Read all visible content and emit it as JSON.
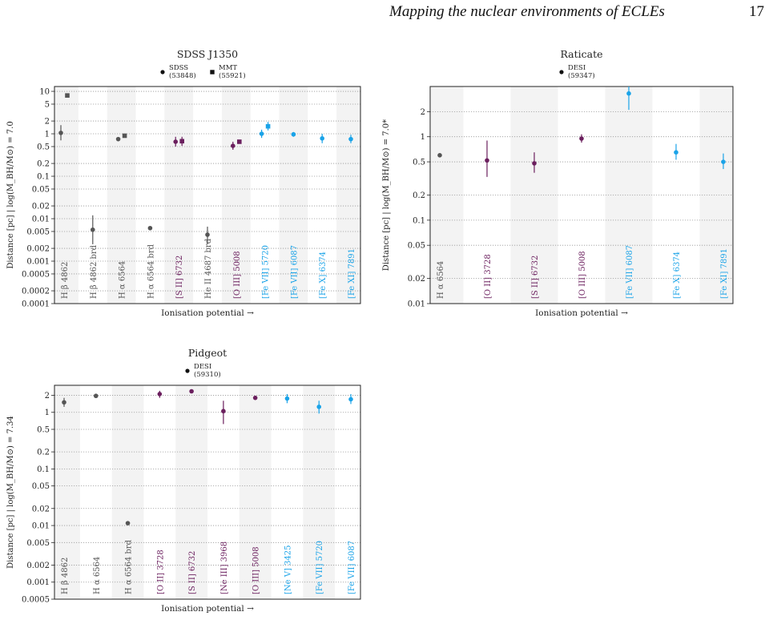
{
  "header": {
    "running_title": "Mapping the nuclear environments of ECLEs",
    "page_number": "17"
  },
  "colors": {
    "balmer": "#555555",
    "low_ionisation": "#6b1f5e",
    "coronal": "#1aa3e8",
    "band": "#f3f3f3",
    "gridline": "#9a9a9a"
  },
  "chart_data": [
    {
      "id": "sdss-j1350",
      "type": "scatter",
      "title": "SDSS J1350",
      "xlabel": "Ionisation potential →",
      "ylabel": "Distance [pc] | log(M_BH/M⊙) = 7.0",
      "y_scale": "log",
      "ylim": [
        0.0001,
        13
      ],
      "grid": "horizontal-dotted",
      "legend": [
        {
          "marker": "circle",
          "line1": "SDSS",
          "line2": "(53848)"
        },
        {
          "marker": "square",
          "line1": "MMT",
          "line2": "(55921)"
        }
      ],
      "y_ticks": [
        "10",
        "5",
        "2",
        "1",
        "0.5",
        "0.2",
        "0.1",
        "0.05",
        "0.02",
        "0.01",
        "0.005",
        "0.002",
        "0.001",
        "0.0005",
        "0.0002",
        "0.0001"
      ],
      "categories": [
        {
          "label": "H β 4862",
          "group": "balmer"
        },
        {
          "label": "H β 4862 brd",
          "group": "balmer"
        },
        {
          "label": "H α 6564",
          "group": "balmer"
        },
        {
          "label": "H α 6564 brd",
          "group": "balmer"
        },
        {
          "label": "[S II] 6732",
          "group": "low_ionisation"
        },
        {
          "label": "He II 4687 brd",
          "group": "balmer"
        },
        {
          "label": "[O III] 5008",
          "group": "low_ionisation"
        },
        {
          "label": "[Fe VII] 5720",
          "group": "coronal"
        },
        {
          "label": "[Fe VII] 6087",
          "group": "coronal"
        },
        {
          "label": "[Fe X] 6374",
          "group": "coronal"
        },
        {
          "label": "[Fe XI] 7891",
          "group": "coronal"
        }
      ],
      "points": [
        {
          "cat": 0,
          "series": "SDSS",
          "y": 1.05,
          "lo": 0.7,
          "hi": 1.6
        },
        {
          "cat": 0,
          "series": "MMT",
          "y": 8.0,
          "lo": 7.6,
          "hi": 8.4
        },
        {
          "cat": 1,
          "series": "SDSS",
          "y": 0.0055,
          "lo": 0.0025,
          "hi": 0.012
        },
        {
          "cat": 2,
          "series": "SDSS",
          "y": 0.75,
          "lo": 0.7,
          "hi": 0.8
        },
        {
          "cat": 2,
          "series": "MMT",
          "y": 0.9,
          "lo": 0.85,
          "hi": 0.95
        },
        {
          "cat": 3,
          "series": "SDSS",
          "y": 0.006,
          "lo": 0.0057,
          "hi": 0.0063
        },
        {
          "cat": 4,
          "series": "SDSS",
          "y": 0.65,
          "lo": 0.5,
          "hi": 0.85
        },
        {
          "cat": 4,
          "series": "MMT",
          "y": 0.67,
          "lo": 0.52,
          "hi": 0.85
        },
        {
          "cat": 5,
          "series": "SDSS",
          "y": 0.0042,
          "lo": 0.0025,
          "hi": 0.0065
        },
        {
          "cat": 6,
          "series": "SDSS",
          "y": 0.52,
          "lo": 0.42,
          "hi": 0.65
        },
        {
          "cat": 6,
          "series": "MMT",
          "y": 0.65,
          "lo": 0.6,
          "hi": 0.7
        },
        {
          "cat": 7,
          "series": "SDSS",
          "y": 1.0,
          "lo": 0.8,
          "hi": 1.25
        },
        {
          "cat": 7,
          "series": "MMT",
          "y": 1.5,
          "lo": 1.2,
          "hi": 1.9
        },
        {
          "cat": 8,
          "series": "SDSS",
          "y": 0.97,
          "lo": 0.85,
          "hi": 1.1
        },
        {
          "cat": 9,
          "series": "SDSS",
          "y": 0.78,
          "lo": 0.6,
          "hi": 1.0
        },
        {
          "cat": 10,
          "series": "SDSS",
          "y": 0.75,
          "lo": 0.6,
          "hi": 0.95
        }
      ]
    },
    {
      "id": "raticate",
      "type": "scatter",
      "title": "Raticate",
      "xlabel": "Ionisation potential →",
      "ylabel": "Distance [pc] | log(M_BH/M⊙) = 7.0*",
      "y_scale": "log",
      "ylim": [
        0.01,
        4.0
      ],
      "grid": "horizontal-dotted",
      "legend": [
        {
          "marker": "circle",
          "line1": "DESI",
          "line2": "(59347)"
        }
      ],
      "y_ticks": [
        "2",
        "1",
        "0.5",
        "0.2",
        "0.1",
        "0.05",
        "0.02",
        "0.01"
      ],
      "categories": [
        {
          "label": "H α 6564",
          "group": "balmer"
        },
        {
          "label": "[O II] 3728",
          "group": "low_ionisation"
        },
        {
          "label": "[S II] 6732",
          "group": "low_ionisation"
        },
        {
          "label": "[O III] 5008",
          "group": "low_ionisation"
        },
        {
          "label": "[Fe VII] 6087",
          "group": "coronal"
        },
        {
          "label": "[Fe X] 6374",
          "group": "coronal"
        },
        {
          "label": "[Fe XI] 7891",
          "group": "coronal"
        }
      ],
      "points": [
        {
          "cat": 0,
          "series": "DESI",
          "y": 0.6,
          "lo": 0.57,
          "hi": 0.63
        },
        {
          "cat": 1,
          "series": "DESI",
          "y": 0.52,
          "lo": 0.33,
          "hi": 0.9
        },
        {
          "cat": 2,
          "series": "DESI",
          "y": 0.48,
          "lo": 0.37,
          "hi": 0.65
        },
        {
          "cat": 3,
          "series": "DESI",
          "y": 0.95,
          "lo": 0.85,
          "hi": 1.07
        },
        {
          "cat": 4,
          "series": "DESI",
          "y": 3.3,
          "lo": 2.1,
          "hi": 4.0
        },
        {
          "cat": 5,
          "series": "DESI",
          "y": 0.65,
          "lo": 0.53,
          "hi": 0.82
        },
        {
          "cat": 6,
          "series": "DESI",
          "y": 0.5,
          "lo": 0.41,
          "hi": 0.63
        }
      ]
    },
    {
      "id": "pidgeot",
      "type": "scatter",
      "title": "Pidgeot",
      "xlabel": "Ionisation potential →",
      "ylabel": "Distance [pc] | log(M_BH/M⊙) = 7.34",
      "y_scale": "log",
      "ylim": [
        0.0005,
        3.0
      ],
      "grid": "horizontal-dotted",
      "legend": [
        {
          "marker": "circle",
          "line1": "DESI",
          "line2": "(59310)"
        }
      ],
      "y_ticks": [
        "2",
        "1",
        "0.5",
        "0.2",
        "0.1",
        "0.05",
        "0.02",
        "0.01",
        "0.005",
        "0.002",
        "0.001",
        "0.0005"
      ],
      "categories": [
        {
          "label": "H β 4862",
          "group": "balmer"
        },
        {
          "label": "H α 6564",
          "group": "balmer"
        },
        {
          "label": "H α 6564 brd",
          "group": "balmer"
        },
        {
          "label": "[O II] 3728",
          "group": "low_ionisation"
        },
        {
          "label": "[S II] 6732",
          "group": "low_ionisation"
        },
        {
          "label": "[Ne III] 3968",
          "group": "low_ionisation"
        },
        {
          "label": "[O III] 5008",
          "group": "low_ionisation"
        },
        {
          "label": "[Ne V] 3425",
          "group": "coronal"
        },
        {
          "label": "[Fe VII] 5720",
          "group": "coronal"
        },
        {
          "label": "[Fe VII] 6087",
          "group": "coronal"
        }
      ],
      "points": [
        {
          "cat": 0,
          "series": "DESI",
          "y": 1.5,
          "lo": 1.25,
          "hi": 1.8
        },
        {
          "cat": 1,
          "series": "DESI",
          "y": 1.95,
          "lo": 1.9,
          "hi": 2.0
        },
        {
          "cat": 2,
          "series": "DESI",
          "y": 0.011,
          "lo": 0.0106,
          "hi": 0.0114
        },
        {
          "cat": 3,
          "series": "DESI",
          "y": 2.1,
          "lo": 1.8,
          "hi": 2.4
        },
        {
          "cat": 4,
          "series": "DESI",
          "y": 2.35,
          "lo": 2.2,
          "hi": 2.5
        },
        {
          "cat": 5,
          "series": "DESI",
          "y": 1.05,
          "lo": 0.62,
          "hi": 1.6
        },
        {
          "cat": 6,
          "series": "DESI",
          "y": 1.8,
          "lo": 1.7,
          "hi": 1.9
        },
        {
          "cat": 7,
          "series": "DESI",
          "y": 1.75,
          "lo": 1.45,
          "hi": 2.1
        },
        {
          "cat": 8,
          "series": "DESI",
          "y": 1.25,
          "lo": 0.95,
          "hi": 1.6
        },
        {
          "cat": 9,
          "series": "DESI",
          "y": 1.7,
          "lo": 1.4,
          "hi": 2.1
        }
      ]
    }
  ]
}
